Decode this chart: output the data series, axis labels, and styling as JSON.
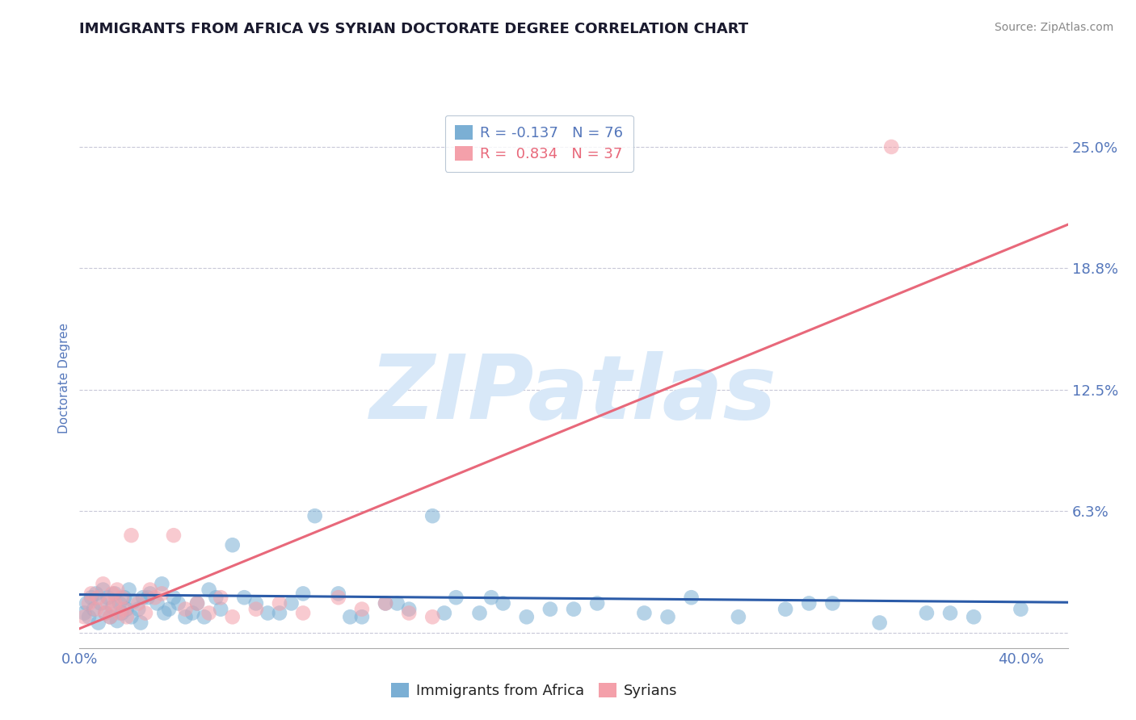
{
  "title": "IMMIGRANTS FROM AFRICA VS SYRIAN DOCTORATE DEGREE CORRELATION CHART",
  "source_text": "Source: ZipAtlas.com",
  "ylabel": "Doctorate Degree",
  "xlim": [
    0.0,
    0.42
  ],
  "ylim": [
    -0.008,
    0.27
  ],
  "ytick_values": [
    0.0,
    0.0625,
    0.125,
    0.1875,
    0.25
  ],
  "ytick_labels": [
    "",
    "6.3%",
    "12.5%",
    "18.8%",
    "25.0%"
  ],
  "blue_color": "#7BAFD4",
  "pink_color": "#F4A0AA",
  "blue_line_color": "#2B5BA8",
  "pink_line_color": "#E8687A",
  "legend_blue_label": "R = -0.137   N = 76",
  "legend_pink_label": "R =  0.834   N = 37",
  "bottom_legend_blue": "Immigrants from Africa",
  "bottom_legend_pink": "Syrians",
  "watermark": "ZIPatlas",
  "blue_scatter_x": [
    0.002,
    0.003,
    0.004,
    0.005,
    0.006,
    0.007,
    0.008,
    0.009,
    0.01,
    0.011,
    0.012,
    0.013,
    0.014,
    0.015,
    0.016,
    0.017,
    0.018,
    0.019,
    0.02,
    0.021,
    0.022,
    0.023,
    0.025,
    0.027,
    0.03,
    0.033,
    0.036,
    0.04,
    0.045,
    0.05,
    0.055,
    0.06,
    0.065,
    0.07,
    0.08,
    0.09,
    0.1,
    0.11,
    0.12,
    0.13,
    0.14,
    0.15,
    0.16,
    0.17,
    0.18,
    0.19,
    0.2,
    0.22,
    0.24,
    0.26,
    0.28,
    0.3,
    0.32,
    0.34,
    0.36,
    0.38,
    0.4,
    0.035,
    0.042,
    0.048,
    0.053,
    0.058,
    0.075,
    0.085,
    0.095,
    0.115,
    0.135,
    0.155,
    0.175,
    0.21,
    0.25,
    0.31,
    0.37,
    0.026,
    0.029,
    0.038
  ],
  "blue_scatter_y": [
    0.01,
    0.015,
    0.008,
    0.018,
    0.012,
    0.02,
    0.005,
    0.015,
    0.022,
    0.01,
    0.018,
    0.008,
    0.013,
    0.02,
    0.006,
    0.015,
    0.01,
    0.018,
    0.012,
    0.022,
    0.008,
    0.016,
    0.012,
    0.018,
    0.02,
    0.015,
    0.01,
    0.018,
    0.008,
    0.015,
    0.022,
    0.012,
    0.045,
    0.018,
    0.01,
    0.015,
    0.06,
    0.02,
    0.008,
    0.015,
    0.012,
    0.06,
    0.018,
    0.01,
    0.015,
    0.008,
    0.012,
    0.015,
    0.01,
    0.018,
    0.008,
    0.012,
    0.015,
    0.005,
    0.01,
    0.008,
    0.012,
    0.025,
    0.015,
    0.01,
    0.008,
    0.018,
    0.015,
    0.01,
    0.02,
    0.008,
    0.015,
    0.01,
    0.018,
    0.012,
    0.008,
    0.015,
    0.01,
    0.005,
    0.018,
    0.012
  ],
  "pink_scatter_x": [
    0.002,
    0.004,
    0.005,
    0.007,
    0.008,
    0.01,
    0.011,
    0.012,
    0.013,
    0.014,
    0.015,
    0.016,
    0.017,
    0.018,
    0.019,
    0.02,
    0.022,
    0.025,
    0.028,
    0.032,
    0.035,
    0.04,
    0.045,
    0.05,
    0.055,
    0.06,
    0.065,
    0.075,
    0.085,
    0.095,
    0.11,
    0.12,
    0.13,
    0.14,
    0.15,
    0.03,
    0.345
  ],
  "pink_scatter_y": [
    0.008,
    0.015,
    0.02,
    0.012,
    0.018,
    0.025,
    0.01,
    0.015,
    0.008,
    0.02,
    0.015,
    0.022,
    0.01,
    0.018,
    0.012,
    0.008,
    0.05,
    0.015,
    0.01,
    0.018,
    0.02,
    0.05,
    0.012,
    0.015,
    0.01,
    0.018,
    0.008,
    0.012,
    0.015,
    0.01,
    0.018,
    0.012,
    0.015,
    0.01,
    0.008,
    0.022,
    0.25
  ],
  "blue_trend_x": [
    0.0,
    0.42
  ],
  "blue_trend_y": [
    0.0195,
    0.0155
  ],
  "pink_trend_x": [
    0.0,
    0.42
  ],
  "pink_trend_y": [
    0.002,
    0.21
  ],
  "title_color": "#1a1a2e",
  "axis_color": "#5577BB",
  "tick_label_color": "#5577BB",
  "legend_text_blue": "#5577BB",
  "legend_text_pink": "#E8687A",
  "bottom_text_color": "#222222",
  "background_color": "#FFFFFF",
  "grid_color": "#C8C8D8",
  "title_fontsize": 13,
  "source_fontsize": 10,
  "watermark_color": "#D8E8F8",
  "watermark_fontsize": 80,
  "scatter_size": 180,
  "scatter_alpha": 0.55,
  "trend_linewidth": 2.2
}
